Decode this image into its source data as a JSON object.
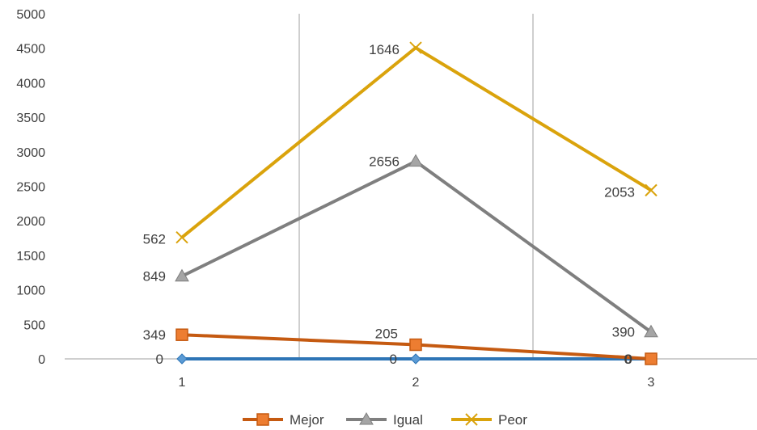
{
  "chart_data": {
    "type": "line",
    "categories": [
      "1",
      "2",
      "3"
    ],
    "ylim": [
      0,
      5000
    ],
    "yticks": [
      0,
      500,
      1000,
      1500,
      2000,
      2500,
      3000,
      3500,
      4000,
      4500,
      5000
    ],
    "grid": "vertical",
    "legend_position": "bottom",
    "series": [
      {
        "name": "",
        "color": "#2E75B6",
        "marker": "diamond",
        "in_legend": false,
        "values": [
          0,
          0,
          0
        ],
        "labels": [
          "0",
          "0",
          "0"
        ]
      },
      {
        "name": "Mejor",
        "color": "#C55A11",
        "marker_fill": "#ED7D31",
        "marker": "square",
        "in_legend": true,
        "values": [
          349,
          205,
          0
        ],
        "labels": [
          "349",
          "205",
          "0"
        ]
      },
      {
        "name": "Igual",
        "color": "#7F7F7F",
        "marker_fill": "#A5A5A5",
        "marker": "triangle",
        "in_legend": true,
        "values": [
          1198,
          2861,
          390
        ],
        "labels": [
          "849",
          "2656",
          "390"
        ]
      },
      {
        "name": "Peor",
        "color": "#DAA30C",
        "marker_fill": "#DAA30C",
        "marker": "x",
        "in_legend": true,
        "values": [
          1760,
          4507,
          2443
        ],
        "labels": [
          "562",
          "1646",
          "2053"
        ]
      }
    ]
  }
}
